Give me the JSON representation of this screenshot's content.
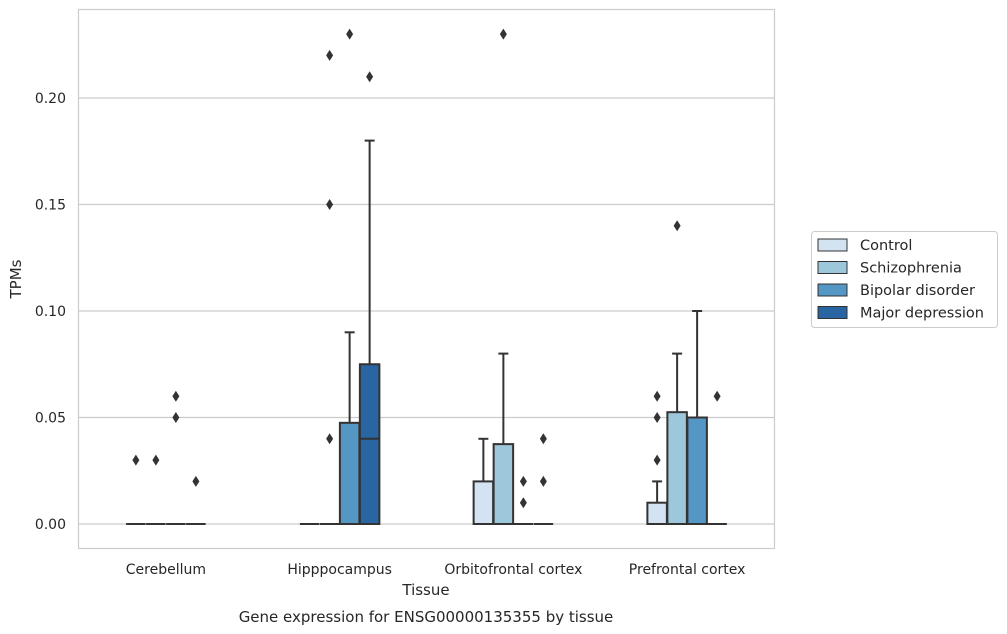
{
  "chart_data": {
    "type": "box",
    "title": "Gene expression for ENSG00000135355 by tissue",
    "xlabel": "Tissue",
    "ylabel": "TPMs",
    "ylim": [
      -0.011,
      0.242
    ],
    "yticks": [
      "0.00",
      "0.05",
      "0.10",
      "0.15",
      "0.20"
    ],
    "ytick_values": [
      0,
      0.05,
      0.1,
      0.15,
      0.2
    ],
    "grid": true,
    "legend_position": "right",
    "categories": [
      "Cerebellum",
      "Hipppocampus",
      "Orbitofrontal cortex",
      "Prefrontal cortex"
    ],
    "series": [
      {
        "name": "Control",
        "color": "#d3e3f1",
        "boxes": [
          {
            "q1": 0,
            "median": 0,
            "q3": 0,
            "whislo": 0,
            "whishi": 0,
            "fliers": [
              0.03
            ]
          },
          {
            "q1": 0,
            "median": 0,
            "q3": 0,
            "whislo": 0,
            "whishi": 0,
            "fliers": []
          },
          {
            "q1": 0,
            "median": 0,
            "q3": 0.02,
            "whislo": 0,
            "whishi": 0.04,
            "fliers": []
          },
          {
            "q1": 0,
            "median": 0,
            "q3": 0.01,
            "whislo": 0,
            "whishi": 0.02,
            "fliers": [
              0.03,
              0.05,
              0.06
            ]
          }
        ]
      },
      {
        "name": "Schizophrenia",
        "color": "#9dc8dc",
        "boxes": [
          {
            "q1": 0,
            "median": 0,
            "q3": 0,
            "whislo": 0,
            "whishi": 0,
            "fliers": [
              0.03
            ]
          },
          {
            "q1": 0,
            "median": 0,
            "q3": 0,
            "whislo": 0,
            "whishi": 0,
            "fliers": [
              0.04,
              0.15,
              0.22
            ]
          },
          {
            "q1": 0,
            "median": 0,
            "q3": 0.0375,
            "whislo": 0,
            "whishi": 0.08,
            "fliers": [
              0.23
            ]
          },
          {
            "q1": 0,
            "median": 0,
            "q3": 0.0525,
            "whislo": 0,
            "whishi": 0.08,
            "fliers": [
              0.14
            ]
          }
        ]
      },
      {
        "name": "Bipolar disorder",
        "color": "#5496c4",
        "boxes": [
          {
            "q1": 0,
            "median": 0,
            "q3": 0,
            "whislo": 0,
            "whishi": 0,
            "fliers": [
              0.05,
              0.06
            ]
          },
          {
            "q1": 0,
            "median": 0,
            "q3": 0.0475,
            "whislo": 0,
            "whishi": 0.09,
            "fliers": [
              0.23
            ]
          },
          {
            "q1": 0,
            "median": 0,
            "q3": 0,
            "whislo": 0,
            "whishi": 0,
            "fliers": [
              0.01,
              0.02
            ]
          },
          {
            "q1": 0,
            "median": 0,
            "q3": 0.05,
            "whislo": 0,
            "whishi": 0.1,
            "fliers": []
          }
        ]
      },
      {
        "name": "Major depression",
        "color": "#2865a2",
        "boxes": [
          {
            "q1": 0,
            "median": 0,
            "q3": 0,
            "whislo": 0,
            "whishi": 0,
            "fliers": [
              0.02
            ]
          },
          {
            "q1": 0,
            "median": 0.04,
            "q3": 0.075,
            "whislo": 0,
            "whishi": 0.18,
            "fliers": [
              0.21
            ]
          },
          {
            "q1": 0,
            "median": 0,
            "q3": 0,
            "whislo": 0,
            "whishi": 0,
            "fliers": [
              0.02,
              0.04
            ]
          },
          {
            "q1": 0,
            "median": 0,
            "q3": 0,
            "whislo": 0,
            "whishi": 0,
            "fliers": [
              0.06
            ]
          }
        ]
      }
    ]
  },
  "colors": {
    "edge": "#333333",
    "grid": "#cccccc",
    "frame": "#cccccc"
  }
}
